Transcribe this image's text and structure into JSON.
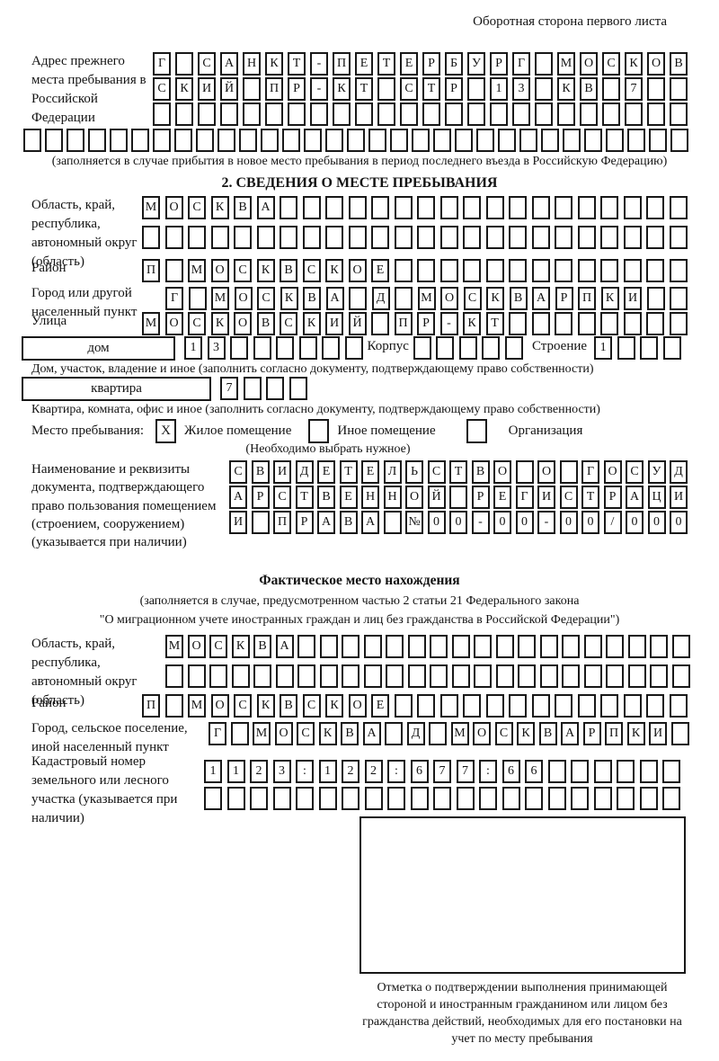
{
  "top_note": "Оборотная сторона первого листа",
  "prev_address": {
    "label": "Адрес прежнего места пребывания в Российской Федерации",
    "row1": {
      "text": "Г САНКТ-ПЕТЕРБУРГ МОСКОВ",
      "len": 24
    },
    "row2": {
      "text": "СКИЙ ПР-КТ СТР 13 КВ 7",
      "len": 24
    },
    "row3": {
      "text": "",
      "len": 24
    },
    "row4": {
      "text": "",
      "len": 31
    },
    "note": "(заполняется в случае прибытия в новое место пребывания в период последнего въезда в Российскую Федерацию)"
  },
  "section2": {
    "title": "2. СВЕДЕНИЯ О МЕСТЕ ПРЕБЫВАНИЯ",
    "region": {
      "label": "Область, край, республика, автономный округ (область)",
      "row1": {
        "text": "МОСКВА",
        "len": 24
      },
      "row2": {
        "text": "",
        "len": 24
      }
    },
    "district": {
      "label": "Район",
      "row": {
        "text": "П МОСКВСКОЕ",
        "len": 24
      }
    },
    "city": {
      "label": "Город или другой населенный пункт",
      "row": {
        "text": "Г МОСКВА Д МОСКВАРПКИ",
        "len": 23
      }
    },
    "street": {
      "label": "Улица",
      "row": {
        "text": "МОСКОВСКИЙ ПР-КТ",
        "len": 24
      }
    },
    "house": {
      "box_label": "дом",
      "cells": {
        "text": "13",
        "len": 8
      },
      "korpus_label": "Корпус",
      "korpus_cells": {
        "text": "",
        "len": 5
      },
      "stroenie_label": "Строение",
      "stroenie_cells": {
        "text": "1",
        "len": 4
      },
      "note": "Дом, участок, владение и иное (заполнить согласно документу, подтверждающему право собственности)"
    },
    "apartment": {
      "box_label": "квартира",
      "cells": {
        "text": "7",
        "len": 4
      },
      "note": "Квартира, комната, офис и иное (заполнить согласно документу, подтверждающему право собственности)"
    },
    "stay_type": {
      "label": "Место пребывания:",
      "options": [
        {
          "label": "Жилое помещение",
          "mark": "X"
        },
        {
          "label": "Иное помещение",
          "mark": ""
        },
        {
          "label": "Организация",
          "mark": ""
        }
      ],
      "note": "(Необходимо выбрать нужное)"
    },
    "document": {
      "label": "Наименование и реквизиты документа, подтверждающего право пользования помещением (строением, сооружением) (указывается при наличии)",
      "row1": {
        "text": "СВИДЕТЕЛЬСТВО О ГОСУД",
        "len": 21
      },
      "row2": {
        "text": "АРСТВЕННОЙ РЕГИСТРАЦИ",
        "len": 21
      },
      "row3": {
        "text": "И ПРАВА №00-00-00/000",
        "len": 21
      }
    }
  },
  "actual_location": {
    "title": "Фактическое место нахождения",
    "note1": "(заполняется в случае, предусмотренном частью 2 статьи 21 Федерального закона",
    "note2": "\"О миграционном учете иностранных граждан и лиц без гражданства в Российской Федерации\")",
    "region": {
      "label": "Область, край, республика, автономный округ (область)",
      "row1": {
        "text": "МОСКВА",
        "len": 24
      },
      "row2": {
        "text": "",
        "len": 24
      }
    },
    "district": {
      "label": "Район",
      "row": {
        "text": "П МОСКВСКОЕ",
        "len": 24
      }
    },
    "city": {
      "label": "Город, сельское поселение, иной населенный пункт",
      "row": {
        "text": "Г МОСКВА Д МОСКВАРПКИ",
        "len": 22
      }
    },
    "cadastral": {
      "label": "Кадастровый номер земельного или лесного участка (указывается при наличии)",
      "row1": {
        "text": "1123:122:677:66",
        "len": 21
      },
      "row2": {
        "text": "",
        "len": 21
      }
    }
  },
  "stamp": {
    "note": "Отметка о подтверждении выполнения принимающей стороной и иностранным гражданином или лицом без гражданства действий, необходимых для его постановки на учет по месту пребывания"
  }
}
